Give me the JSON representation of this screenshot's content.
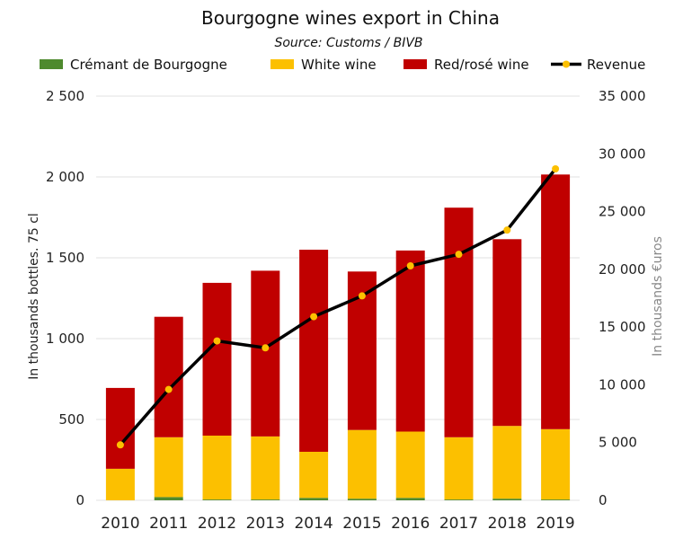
{
  "chart_data": {
    "type": "bar",
    "stacked": true,
    "title": "Bourgogne wines export in China",
    "subtitle": "Source: Customs / BIVB",
    "categories": [
      "2010",
      "2011",
      "2012",
      "2013",
      "2014",
      "2015",
      "2016",
      "2017",
      "2018",
      "2019"
    ],
    "series": [
      {
        "name": "Crémant de Bourgogne",
        "color": "#4e8a2e",
        "values": [
          0,
          20,
          5,
          5,
          15,
          10,
          15,
          5,
          10,
          5
        ]
      },
      {
        "name": "White wine",
        "color": "#fcc000",
        "values": [
          195,
          370,
          395,
          390,
          285,
          425,
          410,
          385,
          450,
          435
        ]
      },
      {
        "name": "Red/rosé wine",
        "color": "#c00000",
        "values": [
          500,
          745,
          945,
          1025,
          1250,
          980,
          1120,
          1420,
          1155,
          1575
        ]
      }
    ],
    "line_series": {
      "name": "Revenue",
      "axis": "right",
      "line_color": "#000000",
      "marker_color": "#fcc000",
      "values": [
        4800,
        9600,
        13800,
        13200,
        15900,
        17700,
        20300,
        21300,
        23400,
        28700
      ]
    },
    "ylabel": "In thousands bottles. 75 cl",
    "y2label": "In thousands €uros",
    "ylim": [
      0,
      2500
    ],
    "y2lim": [
      0,
      35000
    ],
    "yticks": [
      "0",
      "500",
      "1 000",
      "1 500",
      "2 000",
      "2 500"
    ],
    "y2ticks": [
      "0",
      "5 000",
      "10 000",
      "15 000",
      "20 000",
      "25 000",
      "30 000",
      "35 000"
    ],
    "grid": true,
    "legend_position": "top"
  }
}
